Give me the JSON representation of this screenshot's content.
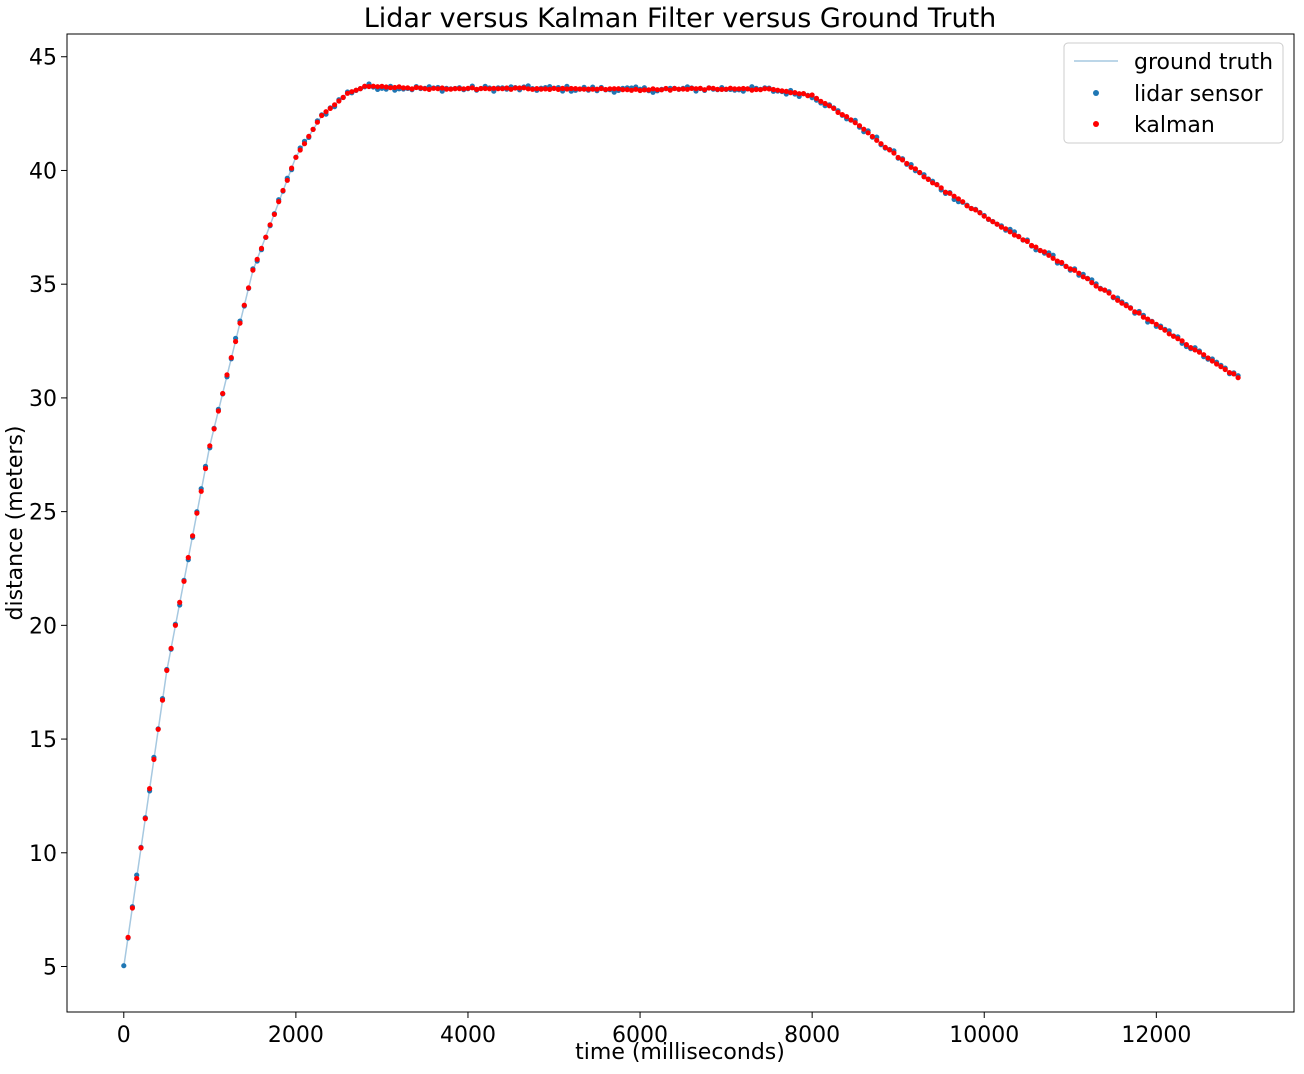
{
  "chart_data": {
    "type": "scatter",
    "title": "Lidar versus Kalman Filter versus Ground Truth",
    "xlabel": "time (milliseconds)",
    "ylabel": "distance (meters)",
    "xlim": [
      -660,
      13600
    ],
    "ylim": [
      3.0,
      46.0
    ],
    "xticks": [
      0,
      2000,
      4000,
      6000,
      8000,
      10000,
      12000
    ],
    "yticks": [
      5,
      10,
      15,
      20,
      25,
      30,
      35,
      40,
      45
    ],
    "grid": false,
    "legend_placement": "top-right",
    "sample_interval_ms": 50,
    "series": [
      {
        "name": "ground truth",
        "kind": "line",
        "color": "#a6c8e0",
        "x": [
          0,
          500,
          1000,
          1500,
          2000,
          2300,
          2600,
          2800,
          3500,
          5000,
          6000,
          7000,
          7500,
          7800,
          8000,
          8500,
          9000,
          9500,
          10000,
          11000,
          12000,
          12950
        ],
        "y": [
          5.0,
          18.0,
          27.9,
          35.6,
          40.6,
          42.4,
          43.4,
          43.7,
          43.6,
          43.6,
          43.55,
          43.6,
          43.55,
          43.4,
          43.3,
          42.1,
          40.6,
          39.2,
          38.0,
          35.7,
          33.2,
          30.9
        ]
      },
      {
        "name": "lidar sensor",
        "kind": "scatter",
        "color": "#1f77b4",
        "noise_amplitude": 0.12
      },
      {
        "name": "kalman",
        "kind": "scatter",
        "color": "#ff0000",
        "noise_amplitude": 0.04
      }
    ]
  }
}
